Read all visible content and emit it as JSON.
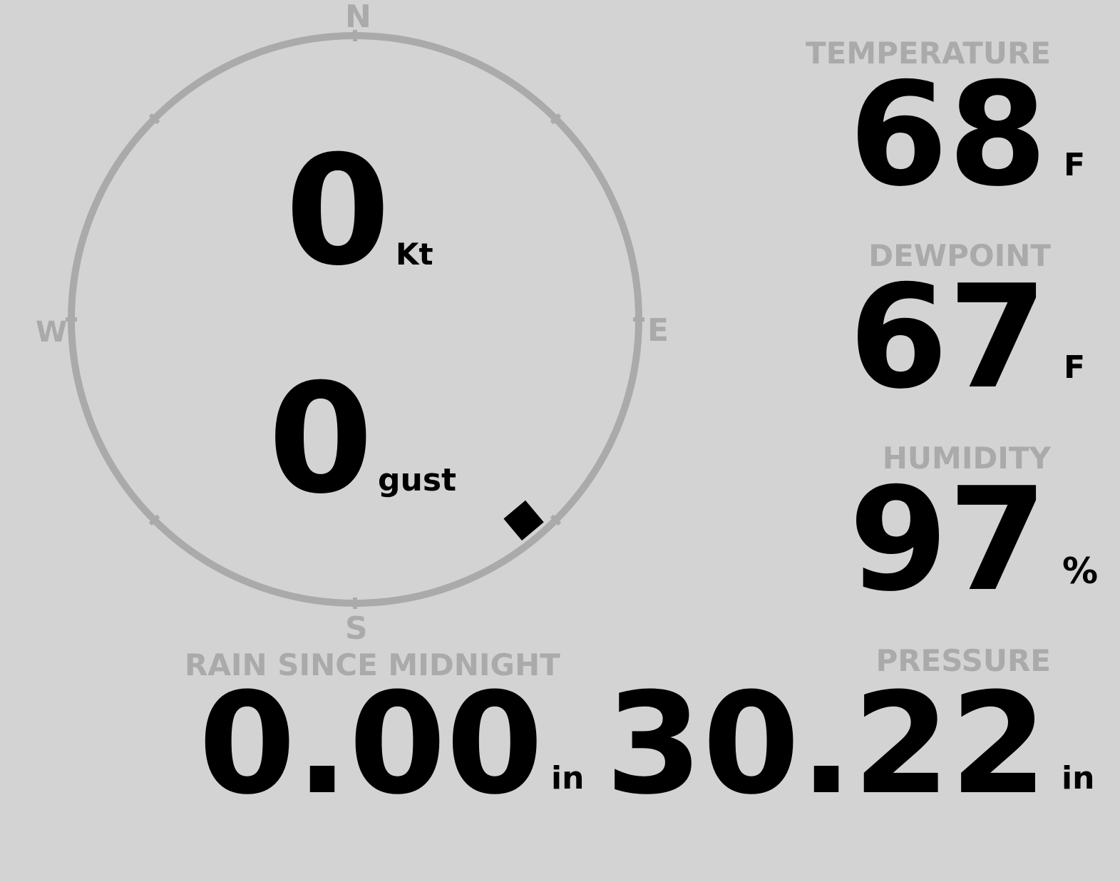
{
  "compass": {
    "north": "N",
    "south": "S",
    "east": "E",
    "west": "W",
    "wind_direction_deg": 140,
    "ring_color": "#aaaaaa",
    "pointer_color": "#000000"
  },
  "wind": {
    "speed": "0",
    "speed_unit": "Kt",
    "gust": "0",
    "gust_unit": "gust"
  },
  "temperature": {
    "label": "TEMPERATURE",
    "value": "68",
    "unit": "F"
  },
  "dewpoint": {
    "label": "DEWPOINT",
    "value": "67",
    "unit": "F"
  },
  "humidity": {
    "label": "HUMIDITY",
    "value": "97",
    "unit": "%"
  },
  "rain": {
    "label": "RAIN SINCE MIDNIGHT",
    "value": "0.00",
    "unit": "in"
  },
  "pressure": {
    "label": "PRESSURE",
    "value": "30.22",
    "unit": "in"
  },
  "colors": {
    "background": "#d3d3d3",
    "label": "#aaaaaa",
    "value": "#000000"
  }
}
